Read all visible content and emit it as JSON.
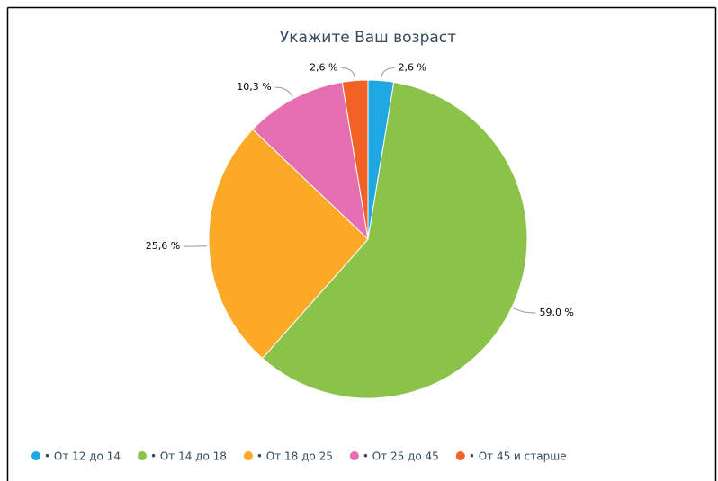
{
  "chart_data": {
    "type": "pie",
    "title": "Укажите Ваш возраст",
    "categories": [
      "• От 12 до 14",
      "• От 14 до 18",
      "• От 18 до 25",
      "• От 25 до 45",
      "• От 45 и старше"
    ],
    "values": [
      2.6,
      59.0,
      25.6,
      10.3,
      2.6
    ],
    "value_labels": [
      "2,6 %",
      "59,0 %",
      "25,6 %",
      "10,3 %",
      "2,6 %"
    ],
    "colors": [
      "#1ea7e1",
      "#8bc34a",
      "#fba926",
      "#e56fb0",
      "#f26227"
    ],
    "legend": "bottom"
  }
}
